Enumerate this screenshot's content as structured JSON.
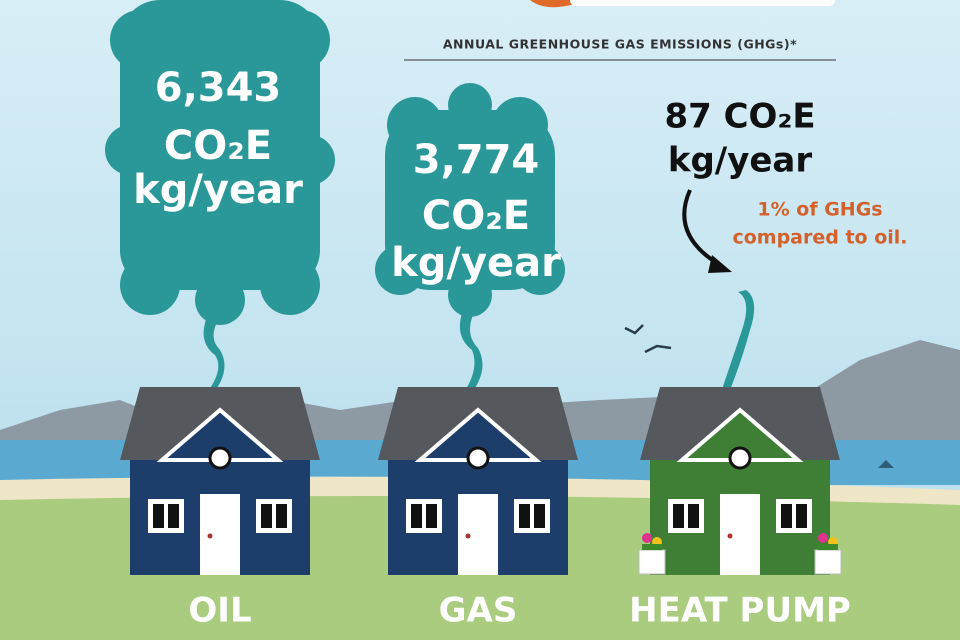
{
  "header": {
    "title": "ANNUAL GREENHOUSE GAS EMISSIONS (GHGs)*"
  },
  "houses": [
    {
      "label": "OIL",
      "emission": [
        "6,343",
        "CO₂E",
        "kg/year"
      ]
    },
    {
      "label": "GAS",
      "emission": [
        "3,774",
        "CO₂E",
        "kg/year"
      ]
    },
    {
      "label": "HEAT PUMP",
      "emission": [
        "87 CO₂E",
        "kg/year"
      ],
      "note": [
        "1% of GHGs",
        "compared to oil."
      ]
    }
  ]
}
